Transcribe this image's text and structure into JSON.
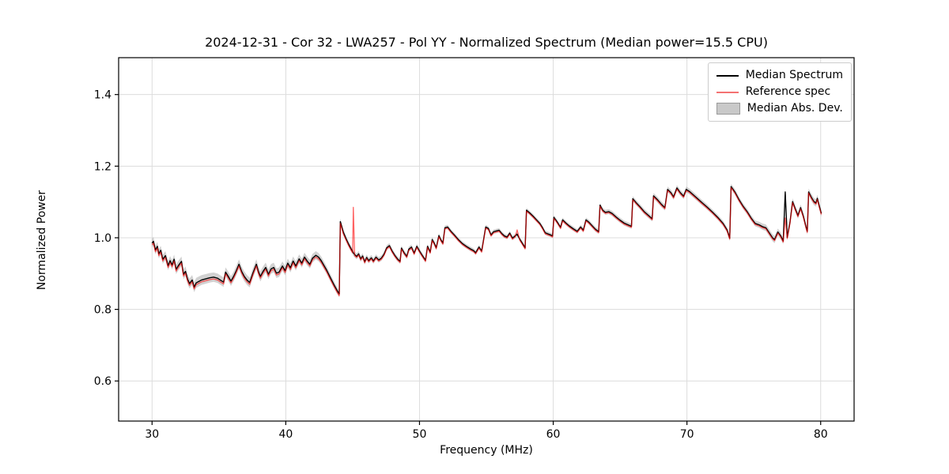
{
  "chart_data": {
    "type": "line",
    "title": "2024-12-31 - Cor 32 - LWA257 - Pol YY - Normalized Spectrum (Median power=15.5 CPU)",
    "xlabel": "Frequency (MHz)",
    "ylabel": "Normalized Power",
    "xlim": [
      27.5,
      82.5
    ],
    "ylim": [
      0.488,
      1.503
    ],
    "grid": true,
    "xticks": [
      30,
      40,
      50,
      60,
      70,
      80
    ],
    "xtick_labels": [
      "30",
      "40",
      "50",
      "60",
      "70",
      "80"
    ],
    "yticks": [
      0.6,
      0.8,
      1.0,
      1.2,
      1.4
    ],
    "ytick_labels": [
      "0.6",
      "0.8",
      "1.0",
      "1.2",
      "1.4"
    ],
    "legend": {
      "position": "upper right",
      "entries": [
        {
          "label": "Median Spectrum",
          "type": "line",
          "color": "#000000"
        },
        {
          "label": "Reference spec",
          "type": "line",
          "color": "#f47272"
        },
        {
          "label": "Median Abs. Dev.",
          "type": "patch",
          "color": "#c9c9c9",
          "edge": "#9a9a9a"
        }
      ]
    },
    "colors": {
      "median_line": "#000000",
      "reference_line": "#ff0000",
      "reference_opacity": 0.62,
      "mad_band": "#888888",
      "mad_band_opacity": 0.38,
      "grid": "#dcdcdc",
      "spine": "#000000"
    },
    "freq": [
      30.0,
      30.1,
      30.25,
      30.4,
      30.5,
      30.65,
      30.8,
      31.0,
      31.2,
      31.35,
      31.5,
      31.65,
      31.8,
      32.0,
      32.2,
      32.35,
      32.5,
      32.65,
      32.8,
      33.0,
      33.15,
      33.3,
      33.5,
      33.7,
      34.0,
      34.3,
      34.6,
      34.9,
      35.1,
      35.35,
      35.5,
      35.7,
      35.9,
      36.1,
      36.3,
      36.5,
      36.7,
      36.9,
      37.1,
      37.3,
      37.55,
      37.8,
      37.95,
      38.1,
      38.3,
      38.5,
      38.7,
      38.9,
      39.1,
      39.3,
      39.5,
      39.75,
      39.95,
      40.15,
      40.35,
      40.55,
      40.75,
      41.0,
      41.2,
      41.4,
      41.6,
      41.8,
      42.0,
      42.25,
      42.45,
      42.65,
      42.85,
      43.05,
      43.3,
      43.6,
      43.85,
      44.0,
      44.08,
      44.3,
      44.5,
      44.7,
      44.9,
      45.0,
      45.05,
      45.15,
      45.3,
      45.45,
      45.6,
      45.75,
      45.9,
      46.05,
      46.2,
      46.4,
      46.55,
      46.75,
      46.95,
      47.15,
      47.35,
      47.55,
      47.75,
      47.95,
      48.15,
      48.35,
      48.55,
      48.65,
      48.85,
      49.05,
      49.2,
      49.4,
      49.6,
      49.8,
      50.0,
      50.2,
      50.45,
      50.6,
      50.8,
      50.95,
      51.1,
      51.25,
      51.45,
      51.6,
      51.75,
      51.9,
      52.1,
      52.35,
      52.6,
      52.9,
      53.2,
      53.5,
      53.8,
      54.05,
      54.2,
      54.45,
      54.65,
      54.95,
      55.15,
      55.35,
      55.55,
      55.75,
      55.95,
      56.15,
      56.35,
      56.55,
      56.75,
      56.95,
      57.15,
      57.3,
      57.5,
      57.7,
      57.9,
      58.0,
      58.25,
      58.5,
      58.75,
      59.0,
      59.2,
      59.4,
      59.6,
      59.8,
      59.95,
      60.05,
      60.3,
      60.55,
      60.7,
      60.95,
      61.2,
      61.5,
      61.8,
      62.05,
      62.25,
      62.45,
      62.65,
      62.9,
      63.15,
      63.4,
      63.5,
      63.7,
      63.9,
      64.15,
      64.4,
      64.7,
      65.0,
      65.3,
      65.6,
      65.85,
      65.95,
      66.2,
      66.5,
      66.8,
      67.1,
      67.4,
      67.5,
      67.8,
      68.1,
      68.35,
      68.55,
      68.8,
      69.0,
      69.25,
      69.5,
      69.75,
      69.95,
      70.2,
      70.5,
      70.8,
      71.1,
      71.5,
      71.9,
      72.3,
      72.7,
      73.0,
      73.2,
      73.3,
      73.6,
      73.9,
      74.2,
      74.5,
      74.8,
      75.1,
      75.4,
      75.65,
      75.9,
      76.15,
      76.4,
      76.55,
      76.8,
      77.0,
      77.2,
      77.35,
      77.5,
      77.7,
      77.9,
      78.1,
      78.3,
      78.5,
      78.7,
      78.9,
      79.0,
      79.1,
      79.3,
      79.5,
      79.65,
      79.75,
      79.9,
      80.05
    ],
    "series": [
      {
        "name": "Median Spectrum",
        "values": [
          0.985,
          0.99,
          0.966,
          0.976,
          0.955,
          0.965,
          0.94,
          0.95,
          0.922,
          0.936,
          0.924,
          0.94,
          0.912,
          0.924,
          0.934,
          0.898,
          0.906,
          0.885,
          0.872,
          0.882,
          0.862,
          0.874,
          0.878,
          0.882,
          0.885,
          0.888,
          0.89,
          0.887,
          0.882,
          0.876,
          0.904,
          0.892,
          0.879,
          0.892,
          0.908,
          0.926,
          0.906,
          0.892,
          0.882,
          0.875,
          0.902,
          0.926,
          0.906,
          0.892,
          0.906,
          0.917,
          0.898,
          0.913,
          0.917,
          0.901,
          0.904,
          0.921,
          0.908,
          0.929,
          0.916,
          0.935,
          0.921,
          0.941,
          0.929,
          0.946,
          0.935,
          0.926,
          0.943,
          0.951,
          0.946,
          0.936,
          0.923,
          0.91,
          0.891,
          0.869,
          0.852,
          0.843,
          1.045,
          1.016,
          0.998,
          0.982,
          0.968,
          0.961,
          0.958,
          0.953,
          0.948,
          0.955,
          0.941,
          0.949,
          0.933,
          0.945,
          0.936,
          0.944,
          0.935,
          0.946,
          0.938,
          0.943,
          0.954,
          0.972,
          0.978,
          0.963,
          0.951,
          0.941,
          0.934,
          0.971,
          0.958,
          0.948,
          0.968,
          0.974,
          0.957,
          0.976,
          0.963,
          0.951,
          0.937,
          0.976,
          0.96,
          0.995,
          0.985,
          0.972,
          1.006,
          0.994,
          0.985,
          1.028,
          1.03,
          1.018,
          1.008,
          0.995,
          0.984,
          0.976,
          0.969,
          0.964,
          0.958,
          0.974,
          0.963,
          1.03,
          1.026,
          1.008,
          1.017,
          1.019,
          1.021,
          1.012,
          1.005,
          1.002,
          1.013,
          0.999,
          1.005,
          1.01,
          0.996,
          0.984,
          0.972,
          1.077,
          1.069,
          1.06,
          1.05,
          1.04,
          1.028,
          1.014,
          1.011,
          1.008,
          1.005,
          1.057,
          1.044,
          1.029,
          1.05,
          1.041,
          1.033,
          1.025,
          1.018,
          1.03,
          1.021,
          1.05,
          1.044,
          1.034,
          1.024,
          1.017,
          1.091,
          1.077,
          1.071,
          1.073,
          1.068,
          1.058,
          1.049,
          1.041,
          1.036,
          1.032,
          1.109,
          1.098,
          1.086,
          1.073,
          1.063,
          1.053,
          1.117,
          1.106,
          1.093,
          1.084,
          1.135,
          1.126,
          1.114,
          1.139,
          1.126,
          1.116,
          1.135,
          1.129,
          1.119,
          1.109,
          1.099,
          1.086,
          1.072,
          1.057,
          1.04,
          1.022,
          0.999,
          1.143,
          1.127,
          1.106,
          1.088,
          1.073,
          1.055,
          1.04,
          1.036,
          1.031,
          1.028,
          1.014,
          1.0,
          0.995,
          1.016,
          1.006,
          0.991,
          1.128,
          1.001,
          1.042,
          1.101,
          1.081,
          1.062,
          1.084,
          1.061,
          1.031,
          1.018,
          1.128,
          1.113,
          1.101,
          1.097,
          1.11,
          1.088,
          1.068
        ]
      },
      {
        "name": "Reference spec",
        "values": [
          0.98,
          0.985,
          0.961,
          0.971,
          0.95,
          0.96,
          0.935,
          0.945,
          0.917,
          0.931,
          0.919,
          0.935,
          0.907,
          0.919,
          0.929,
          0.893,
          0.901,
          0.88,
          0.867,
          0.877,
          0.857,
          0.869,
          0.873,
          0.877,
          0.88,
          0.883,
          0.885,
          0.882,
          0.877,
          0.871,
          0.899,
          0.887,
          0.874,
          0.887,
          0.903,
          0.921,
          0.901,
          0.887,
          0.877,
          0.87,
          0.897,
          0.921,
          0.901,
          0.887,
          0.901,
          0.912,
          0.893,
          0.908,
          0.912,
          0.896,
          0.899,
          0.916,
          0.903,
          0.924,
          0.911,
          0.93,
          0.916,
          0.936,
          0.924,
          0.941,
          0.93,
          0.921,
          0.938,
          0.946,
          0.941,
          0.931,
          0.918,
          0.905,
          0.886,
          0.864,
          0.847,
          0.838,
          1.04,
          1.011,
          0.994,
          0.978,
          0.964,
          0.958,
          1.085,
          0.95,
          0.945,
          0.952,
          0.938,
          0.946,
          0.93,
          0.942,
          0.933,
          0.941,
          0.932,
          0.943,
          0.935,
          0.94,
          0.951,
          0.969,
          0.975,
          0.96,
          0.948,
          0.938,
          0.931,
          0.968,
          0.955,
          0.945,
          0.965,
          0.971,
          0.954,
          0.973,
          0.96,
          0.948,
          0.934,
          0.973,
          0.957,
          0.992,
          0.982,
          0.969,
          1.003,
          0.991,
          0.982,
          1.025,
          1.027,
          1.015,
          1.005,
          0.992,
          0.981,
          0.973,
          0.966,
          0.961,
          0.955,
          0.971,
          0.96,
          1.027,
          1.023,
          1.005,
          1.014,
          1.016,
          1.018,
          1.009,
          1.002,
          0.999,
          1.01,
          0.996,
          1.002,
          1.022,
          0.993,
          0.981,
          0.969,
          1.074,
          1.066,
          1.057,
          1.047,
          1.037,
          1.025,
          1.011,
          1.008,
          1.005,
          1.002,
          1.054,
          1.041,
          1.026,
          1.047,
          1.038,
          1.03,
          1.022,
          1.015,
          1.027,
          1.018,
          1.047,
          1.041,
          1.031,
          1.021,
          1.014,
          1.088,
          1.074,
          1.068,
          1.07,
          1.065,
          1.055,
          1.046,
          1.038,
          1.033,
          1.029,
          1.106,
          1.095,
          1.083,
          1.07,
          1.06,
          1.05,
          1.114,
          1.103,
          1.09,
          1.081,
          1.132,
          1.123,
          1.111,
          1.136,
          1.123,
          1.113,
          1.132,
          1.126,
          1.116,
          1.106,
          1.096,
          1.083,
          1.069,
          1.054,
          1.037,
          1.019,
          0.996,
          1.14,
          1.124,
          1.103,
          1.085,
          1.07,
          1.052,
          1.037,
          1.033,
          1.028,
          1.025,
          1.011,
          0.997,
          0.992,
          1.013,
          1.003,
          0.988,
          1.055,
          0.998,
          1.039,
          1.098,
          1.078,
          1.059,
          1.081,
          1.058,
          1.028,
          1.015,
          1.125,
          1.11,
          1.098,
          1.094,
          1.107,
          1.085,
          1.065
        ]
      }
    ],
    "mad_band": {
      "name": "Median Abs. Dev.",
      "points": [
        [
          30,
          0.012
        ],
        [
          33,
          0.014
        ],
        [
          35,
          0.013
        ],
        [
          38,
          0.014
        ],
        [
          40,
          0.013
        ],
        [
          42,
          0.012
        ],
        [
          43.5,
          0.01
        ],
        [
          44.5,
          0.008
        ],
        [
          46,
          0.008
        ],
        [
          48,
          0.007
        ],
        [
          50,
          0.007
        ],
        [
          52,
          0.006
        ],
        [
          54,
          0.006
        ],
        [
          56,
          0.006
        ],
        [
          58,
          0.006
        ],
        [
          60,
          0.006
        ],
        [
          62,
          0.006
        ],
        [
          64,
          0.007
        ],
        [
          66,
          0.007
        ],
        [
          68,
          0.008
        ],
        [
          70,
          0.008
        ],
        [
          72,
          0.007
        ],
        [
          73.5,
          0.008
        ],
        [
          75,
          0.008
        ],
        [
          76.5,
          0.01
        ],
        [
          77.5,
          0.009
        ],
        [
          78.5,
          0.009
        ],
        [
          79.5,
          0.01
        ],
        [
          80.05,
          0.01
        ]
      ]
    }
  }
}
